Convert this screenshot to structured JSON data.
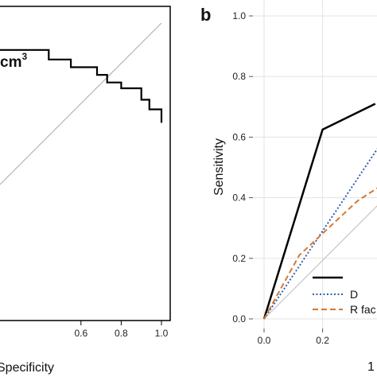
{
  "panel_b_label": "b",
  "chart_data": [
    {
      "panel": "a",
      "type": "line",
      "title": "",
      "xlabel": "Specificity",
      "ylabel": "",
      "x_ticks": [
        "0.6",
        "0.8",
        "1.0"
      ],
      "x_tick_values": [
        0.6,
        0.8,
        1.0
      ],
      "xlim": [
        1.0,
        0.0
      ],
      "ylim": [
        0,
        1
      ],
      "grid": false,
      "annotation": {
        "text": "cm",
        "sup": "3"
      },
      "reference_line": true,
      "series": [
        {
          "x": [
            0.0,
            0.0,
            0.06,
            0.06,
            0.1,
            0.1,
            0.2,
            0.2,
            0.27,
            0.27,
            0.32,
            0.32,
            0.45,
            0.45,
            0.56,
            0.56,
            0.94,
            0.94,
            0.96,
            0.96,
            0.98,
            0.98,
            1.0
          ],
          "y": [
            0.48,
            0.55,
            0.55,
            0.6,
            0.6,
            0.66,
            0.66,
            0.69,
            0.69,
            0.73,
            0.73,
            0.77,
            0.77,
            0.81,
            0.81,
            0.86,
            0.86,
            0.88,
            0.88,
            0.92,
            0.92,
            1.0,
            1.0
          ],
          "color": "#000000"
        }
      ]
    },
    {
      "panel": "b",
      "type": "line",
      "title": "",
      "xlabel": "1",
      "ylabel": "Sensitivity",
      "x_ticks": [
        "0.0",
        "0.2"
      ],
      "x_tick_values": [
        0.0,
        0.2
      ],
      "y_ticks": [
        "0.0",
        "0.2",
        "0.4",
        "0.6",
        "0.8",
        "1.0"
      ],
      "y_tick_values": [
        0.0,
        0.2,
        0.4,
        0.6,
        0.8,
        1.0
      ],
      "xlim": [
        0,
        1
      ],
      "ylim": [
        0,
        1
      ],
      "grid": true,
      "reference_line": true,
      "legend": {
        "position": "bottom-right",
        "labels": [
          "",
          "D",
          "R fac"
        ]
      },
      "series": [
        {
          "name": "",
          "style": "solid",
          "color": "#000000",
          "x": [
            0.0,
            0.2,
            0.38
          ],
          "y": [
            0.0,
            0.625,
            0.71
          ]
        },
        {
          "name": "D",
          "style": "dotted",
          "color": "#2f5fb0",
          "x": [
            0.0,
            0.4
          ],
          "y": [
            0.0,
            0.58
          ]
        },
        {
          "name": "R fac",
          "style": "dashed",
          "color": "#d8782f",
          "x": [
            0.0,
            0.12,
            0.22,
            0.32,
            0.4
          ],
          "y": [
            0.0,
            0.21,
            0.3,
            0.39,
            0.44
          ]
        }
      ]
    }
  ]
}
